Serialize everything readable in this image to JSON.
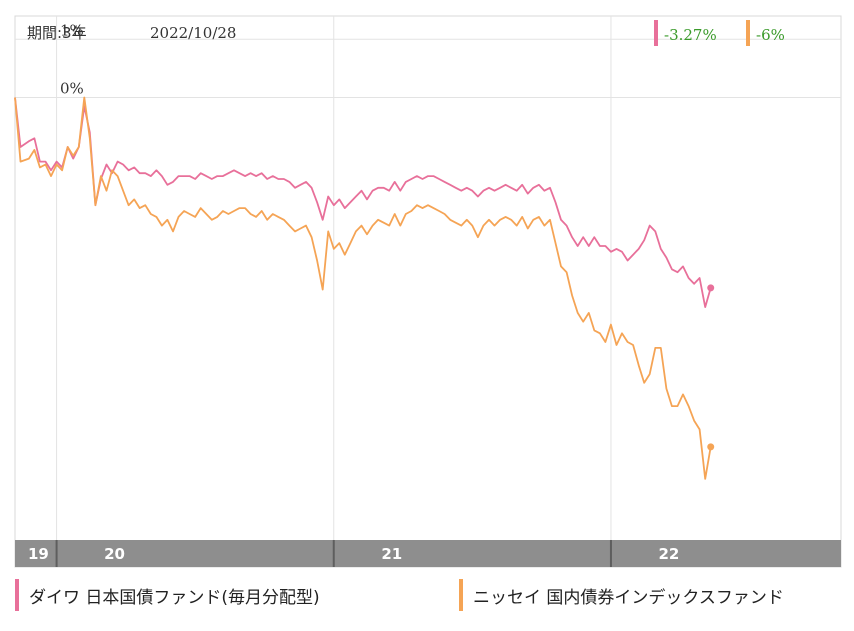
{
  "header": {
    "period_label": "期間:3年",
    "date_label": "2022/10/28"
  },
  "badges": [
    {
      "text": "-3.27%",
      "color": "#e8709a"
    },
    {
      "text": "-6%",
      "color": "#f5a455"
    }
  ],
  "colors": {
    "series1": "#e8709a",
    "series2": "#f5a455",
    "badge_text": "#3a9a2a",
    "grid": "#e3e3e3",
    "axis_band": "#8e8e8e"
  },
  "legend": [
    {
      "label": "ダイワ 日本国債ファンド(毎月分配型)",
      "color": "#e8709a"
    },
    {
      "label": "ニッセイ 国内債券インデックスファンド",
      "color": "#f5a455"
    }
  ],
  "chart_data": {
    "type": "line",
    "x_range": [
      2019.85,
      2022.83
    ],
    "ylim": [
      -7.6,
      1.4
    ],
    "y_ticks": [
      {
        "value": 1,
        "label": "1%"
      },
      {
        "value": 0,
        "label": "0%"
      }
    ],
    "x_ticks": [
      {
        "value": 2019.85,
        "label": "19"
      },
      {
        "value": 2020.0,
        "label": "20"
      },
      {
        "value": 2021.0,
        "label": "21"
      },
      {
        "value": 2022.0,
        "label": "22"
      }
    ],
    "series": [
      {
        "name": "ダイワ 日本国債ファンド(毎月分配型)",
        "end_label": "-3.27%",
        "points": [
          [
            2019.85,
            0.0
          ],
          [
            2019.87,
            -0.85
          ],
          [
            2019.9,
            -0.75
          ],
          [
            2019.92,
            -0.7
          ],
          [
            2019.94,
            -1.1
          ],
          [
            2019.96,
            -1.1
          ],
          [
            2019.98,
            -1.25
          ],
          [
            2020.0,
            -1.1
          ],
          [
            2020.02,
            -1.2
          ],
          [
            2020.04,
            -0.85
          ],
          [
            2020.06,
            -1.05
          ],
          [
            2020.08,
            -0.85
          ],
          [
            2020.1,
            -0.15
          ],
          [
            2020.12,
            -0.6
          ],
          [
            2020.14,
            -1.85
          ],
          [
            2020.16,
            -1.4
          ],
          [
            2020.18,
            -1.15
          ],
          [
            2020.2,
            -1.3
          ],
          [
            2020.22,
            -1.1
          ],
          [
            2020.24,
            -1.15
          ],
          [
            2020.26,
            -1.25
          ],
          [
            2020.28,
            -1.2
          ],
          [
            2020.3,
            -1.3
          ],
          [
            2020.32,
            -1.3
          ],
          [
            2020.34,
            -1.35
          ],
          [
            2020.36,
            -1.25
          ],
          [
            2020.38,
            -1.35
          ],
          [
            2020.4,
            -1.5
          ],
          [
            2020.42,
            -1.45
          ],
          [
            2020.44,
            -1.35
          ],
          [
            2020.46,
            -1.35
          ],
          [
            2020.48,
            -1.35
          ],
          [
            2020.5,
            -1.4
          ],
          [
            2020.52,
            -1.3
          ],
          [
            2020.54,
            -1.35
          ],
          [
            2020.56,
            -1.4
          ],
          [
            2020.58,
            -1.35
          ],
          [
            2020.6,
            -1.35
          ],
          [
            2020.62,
            -1.3
          ],
          [
            2020.64,
            -1.25
          ],
          [
            2020.66,
            -1.3
          ],
          [
            2020.68,
            -1.35
          ],
          [
            2020.7,
            -1.3
          ],
          [
            2020.72,
            -1.35
          ],
          [
            2020.74,
            -1.3
          ],
          [
            2020.76,
            -1.4
          ],
          [
            2020.78,
            -1.35
          ],
          [
            2020.8,
            -1.4
          ],
          [
            2020.82,
            -1.4
          ],
          [
            2020.84,
            -1.45
          ],
          [
            2020.86,
            -1.55
          ],
          [
            2020.88,
            -1.5
          ],
          [
            2020.9,
            -1.45
          ],
          [
            2020.92,
            -1.55
          ],
          [
            2020.94,
            -1.8
          ],
          [
            2020.96,
            -2.1
          ],
          [
            2020.98,
            -1.7
          ],
          [
            2021.0,
            -1.85
          ],
          [
            2021.02,
            -1.75
          ],
          [
            2021.04,
            -1.9
          ],
          [
            2021.06,
            -1.8
          ],
          [
            2021.08,
            -1.7
          ],
          [
            2021.1,
            -1.6
          ],
          [
            2021.12,
            -1.75
          ],
          [
            2021.14,
            -1.6
          ],
          [
            2021.16,
            -1.55
          ],
          [
            2021.18,
            -1.55
          ],
          [
            2021.2,
            -1.6
          ],
          [
            2021.22,
            -1.45
          ],
          [
            2021.24,
            -1.6
          ],
          [
            2021.26,
            -1.45
          ],
          [
            2021.28,
            -1.4
          ],
          [
            2021.3,
            -1.35
          ],
          [
            2021.32,
            -1.4
          ],
          [
            2021.34,
            -1.35
          ],
          [
            2021.36,
            -1.35
          ],
          [
            2021.38,
            -1.4
          ],
          [
            2021.4,
            -1.45
          ],
          [
            2021.42,
            -1.5
          ],
          [
            2021.44,
            -1.55
          ],
          [
            2021.46,
            -1.6
          ],
          [
            2021.48,
            -1.55
          ],
          [
            2021.5,
            -1.6
          ],
          [
            2021.52,
            -1.7
          ],
          [
            2021.54,
            -1.6
          ],
          [
            2021.56,
            -1.55
          ],
          [
            2021.58,
            -1.6
          ],
          [
            2021.6,
            -1.55
          ],
          [
            2021.62,
            -1.5
          ],
          [
            2021.64,
            -1.55
          ],
          [
            2021.66,
            -1.6
          ],
          [
            2021.68,
            -1.5
          ],
          [
            2021.7,
            -1.65
          ],
          [
            2021.72,
            -1.55
          ],
          [
            2021.74,
            -1.5
          ],
          [
            2021.76,
            -1.6
          ],
          [
            2021.78,
            -1.55
          ],
          [
            2021.8,
            -1.8
          ],
          [
            2021.82,
            -2.1
          ],
          [
            2021.84,
            -2.2
          ],
          [
            2021.86,
            -2.4
          ],
          [
            2021.88,
            -2.55
          ],
          [
            2021.9,
            -2.4
          ],
          [
            2021.92,
            -2.55
          ],
          [
            2021.94,
            -2.4
          ],
          [
            2021.96,
            -2.55
          ],
          [
            2021.98,
            -2.55
          ],
          [
            2022.0,
            -2.65
          ],
          [
            2022.02,
            -2.6
          ],
          [
            2022.04,
            -2.65
          ],
          [
            2022.06,
            -2.8
          ],
          [
            2022.08,
            -2.7
          ],
          [
            2022.1,
            -2.6
          ],
          [
            2022.12,
            -2.45
          ],
          [
            2022.14,
            -2.2
          ],
          [
            2022.16,
            -2.3
          ],
          [
            2022.18,
            -2.6
          ],
          [
            2022.2,
            -2.75
          ],
          [
            2022.22,
            -2.95
          ],
          [
            2022.24,
            -3.0
          ],
          [
            2022.26,
            -2.9
          ],
          [
            2022.28,
            -3.1
          ],
          [
            2022.3,
            -3.2
          ],
          [
            2022.32,
            -3.1
          ],
          [
            2022.34,
            -3.6
          ],
          [
            2022.36,
            -3.27
          ]
        ]
      },
      {
        "name": "ニッセイ 国内債券インデックスファンド",
        "end_label": "-6%",
        "points": [
          [
            2019.85,
            0.0
          ],
          [
            2019.87,
            -1.1
          ],
          [
            2019.9,
            -1.05
          ],
          [
            2019.92,
            -0.9
          ],
          [
            2019.94,
            -1.2
          ],
          [
            2019.96,
            -1.15
          ],
          [
            2019.98,
            -1.35
          ],
          [
            2020.0,
            -1.15
          ],
          [
            2020.02,
            -1.25
          ],
          [
            2020.04,
            -0.85
          ],
          [
            2020.06,
            -1.0
          ],
          [
            2020.08,
            -0.85
          ],
          [
            2020.1,
            0.0
          ],
          [
            2020.12,
            -0.7
          ],
          [
            2020.14,
            -1.85
          ],
          [
            2020.16,
            -1.35
          ],
          [
            2020.18,
            -1.6
          ],
          [
            2020.2,
            -1.25
          ],
          [
            2020.22,
            -1.35
          ],
          [
            2020.24,
            -1.6
          ],
          [
            2020.26,
            -1.85
          ],
          [
            2020.28,
            -1.75
          ],
          [
            2020.3,
            -1.9
          ],
          [
            2020.32,
            -1.85
          ],
          [
            2020.34,
            -2.0
          ],
          [
            2020.36,
            -2.05
          ],
          [
            2020.38,
            -2.2
          ],
          [
            2020.4,
            -2.1
          ],
          [
            2020.42,
            -2.3
          ],
          [
            2020.44,
            -2.05
          ],
          [
            2020.46,
            -1.95
          ],
          [
            2020.48,
            -2.0
          ],
          [
            2020.5,
            -2.05
          ],
          [
            2020.52,
            -1.9
          ],
          [
            2020.54,
            -2.0
          ],
          [
            2020.56,
            -2.1
          ],
          [
            2020.58,
            -2.05
          ],
          [
            2020.6,
            -1.95
          ],
          [
            2020.62,
            -2.0
          ],
          [
            2020.64,
            -1.95
          ],
          [
            2020.66,
            -1.9
          ],
          [
            2020.68,
            -1.9
          ],
          [
            2020.7,
            -2.0
          ],
          [
            2020.72,
            -2.05
          ],
          [
            2020.74,
            -1.95
          ],
          [
            2020.76,
            -2.1
          ],
          [
            2020.78,
            -2.0
          ],
          [
            2020.8,
            -2.05
          ],
          [
            2020.82,
            -2.1
          ],
          [
            2020.84,
            -2.2
          ],
          [
            2020.86,
            -2.3
          ],
          [
            2020.88,
            -2.25
          ],
          [
            2020.9,
            -2.2
          ],
          [
            2020.92,
            -2.4
          ],
          [
            2020.94,
            -2.8
          ],
          [
            2020.96,
            -3.3
          ],
          [
            2020.98,
            -2.3
          ],
          [
            2021.0,
            -2.6
          ],
          [
            2021.02,
            -2.5
          ],
          [
            2021.04,
            -2.7
          ],
          [
            2021.06,
            -2.5
          ],
          [
            2021.08,
            -2.3
          ],
          [
            2021.1,
            -2.2
          ],
          [
            2021.12,
            -2.35
          ],
          [
            2021.14,
            -2.2
          ],
          [
            2021.16,
            -2.1
          ],
          [
            2021.18,
            -2.15
          ],
          [
            2021.2,
            -2.2
          ],
          [
            2021.22,
            -2.0
          ],
          [
            2021.24,
            -2.2
          ],
          [
            2021.26,
            -2.0
          ],
          [
            2021.28,
            -1.95
          ],
          [
            2021.3,
            -1.85
          ],
          [
            2021.32,
            -1.9
          ],
          [
            2021.34,
            -1.85
          ],
          [
            2021.36,
            -1.9
          ],
          [
            2021.38,
            -1.95
          ],
          [
            2021.4,
            -2.0
          ],
          [
            2021.42,
            -2.1
          ],
          [
            2021.44,
            -2.15
          ],
          [
            2021.46,
            -2.2
          ],
          [
            2021.48,
            -2.1
          ],
          [
            2021.5,
            -2.2
          ],
          [
            2021.52,
            -2.4
          ],
          [
            2021.54,
            -2.2
          ],
          [
            2021.56,
            -2.1
          ],
          [
            2021.58,
            -2.2
          ],
          [
            2021.6,
            -2.1
          ],
          [
            2021.62,
            -2.05
          ],
          [
            2021.64,
            -2.1
          ],
          [
            2021.66,
            -2.2
          ],
          [
            2021.68,
            -2.05
          ],
          [
            2021.7,
            -2.25
          ],
          [
            2021.72,
            -2.1
          ],
          [
            2021.74,
            -2.05
          ],
          [
            2021.76,
            -2.2
          ],
          [
            2021.78,
            -2.1
          ],
          [
            2021.8,
            -2.5
          ],
          [
            2021.82,
            -2.9
          ],
          [
            2021.84,
            -3.0
          ],
          [
            2021.86,
            -3.4
          ],
          [
            2021.88,
            -3.7
          ],
          [
            2021.9,
            -3.85
          ],
          [
            2021.92,
            -3.7
          ],
          [
            2021.94,
            -4.0
          ],
          [
            2021.96,
            -4.05
          ],
          [
            2021.98,
            -4.2
          ],
          [
            2022.0,
            -3.9
          ],
          [
            2022.02,
            -4.25
          ],
          [
            2022.04,
            -4.05
          ],
          [
            2022.06,
            -4.2
          ],
          [
            2022.08,
            -4.25
          ],
          [
            2022.1,
            -4.6
          ],
          [
            2022.12,
            -4.9
          ],
          [
            2022.14,
            -4.75
          ],
          [
            2022.16,
            -4.3
          ],
          [
            2022.18,
            -4.3
          ],
          [
            2022.2,
            -5.0
          ],
          [
            2022.22,
            -5.3
          ],
          [
            2022.24,
            -5.3
          ],
          [
            2022.26,
            -5.1
          ],
          [
            2022.28,
            -5.3
          ],
          [
            2022.3,
            -5.55
          ],
          [
            2022.32,
            -5.7
          ],
          [
            2022.34,
            -6.55
          ],
          [
            2022.36,
            -6.0
          ]
        ]
      }
    ]
  }
}
